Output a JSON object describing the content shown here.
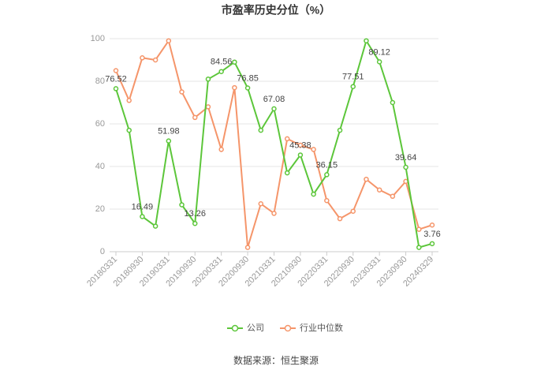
{
  "chart_data": {
    "type": "line",
    "title": "市盈率历史分位（%）",
    "source": "数据来源：恒生聚源",
    "categories": [
      "20180331",
      null,
      "20180930",
      null,
      "20190331",
      null,
      "20190930",
      null,
      "20200331",
      null,
      "20200930",
      null,
      "20210331",
      null,
      "20210930",
      null,
      "20220331",
      null,
      "20220930",
      null,
      "20230331",
      null,
      "20230930",
      null,
      "20240329"
    ],
    "series": [
      {
        "name": "公司",
        "color": "#5cc63a",
        "values": [
          76.52,
          57,
          16.49,
          12,
          51.98,
          22,
          13.26,
          81,
          84.56,
          89,
          76.85,
          57,
          67.08,
          37,
          45.38,
          27,
          36.15,
          57,
          77.51,
          99,
          89.12,
          70,
          39.64,
          2,
          3.76
        ]
      },
      {
        "name": "行业中位数",
        "color": "#f5956a",
        "values": [
          85,
          71,
          91,
          90,
          99,
          75,
          63,
          68,
          48,
          77,
          2,
          22.5,
          18,
          53,
          50,
          48,
          24,
          15.5,
          19,
          34,
          29,
          26,
          33,
          10.5,
          12.5
        ]
      }
    ],
    "ylim": [
      0,
      100
    ],
    "yticks": [
      0,
      20,
      40,
      60,
      80,
      100
    ],
    "grid": true,
    "legend": "bottom"
  }
}
